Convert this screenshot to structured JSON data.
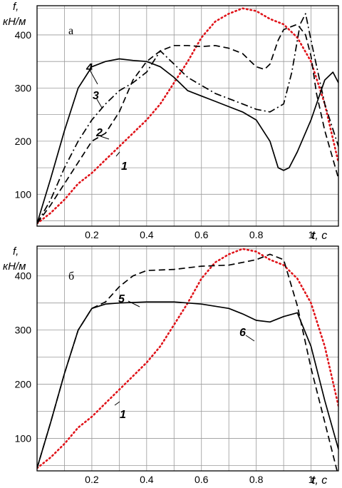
{
  "chart_data": [
    {
      "type": "line",
      "panel_label": "а",
      "ylabel": "f,",
      "yunit": "кН/м",
      "xlabel_var": "t",
      "xlabel_unit": ", с",
      "xlim": [
        0,
        1.1
      ],
      "ylim": [
        40,
        455
      ],
      "x_ticks": [
        0.2,
        0.4,
        0.6,
        0.8,
        1
      ],
      "x_tick_labels": [
        "0.2",
        "0.4",
        "0.6",
        "0.8",
        "1"
      ],
      "y_ticks": [
        100,
        200,
        300,
        400
      ],
      "y_tick_labels": [
        "100",
        "200",
        "300",
        "400"
      ],
      "grid": true,
      "series": [
        {
          "name": "1",
          "color": "#e0141a",
          "dash": "dotted",
          "x": [
            0,
            0.05,
            0.1,
            0.15,
            0.2,
            0.25,
            0.3,
            0.35,
            0.4,
            0.45,
            0.5,
            0.55,
            0.6,
            0.65,
            0.7,
            0.75,
            0.8,
            0.85,
            0.9,
            0.95,
            1.0,
            1.05,
            1.1
          ],
          "y": [
            45,
            65,
            90,
            120,
            140,
            165,
            190,
            215,
            240,
            270,
            310,
            350,
            395,
            425,
            440,
            450,
            445,
            430,
            420,
            395,
            350,
            270,
            160
          ]
        },
        {
          "name": "2",
          "color": "#000000",
          "dash": "dashed",
          "x": [
            0,
            0.05,
            0.1,
            0.15,
            0.2,
            0.25,
            0.3,
            0.35,
            0.4,
            0.45,
            0.5,
            0.55,
            0.6,
            0.65,
            0.7,
            0.75,
            0.8,
            0.83,
            0.85,
            0.88,
            0.9,
            0.95,
            0.98,
            1.0,
            1.02,
            1.05,
            1.1
          ],
          "y": [
            45,
            80,
            120,
            160,
            200,
            215,
            255,
            315,
            350,
            370,
            380,
            380,
            378,
            380,
            375,
            365,
            340,
            335,
            345,
            390,
            410,
            420,
            400,
            360,
            290,
            220,
            130
          ]
        },
        {
          "name": "3",
          "color": "#000000",
          "dash": "dashdot",
          "x": [
            0,
            0.05,
            0.1,
            0.15,
            0.2,
            0.25,
            0.3,
            0.35,
            0.4,
            0.45,
            0.5,
            0.55,
            0.6,
            0.65,
            0.7,
            0.75,
            0.8,
            0.85,
            0.9,
            0.93,
            0.96,
            0.98,
            1.0,
            1.05,
            1.1
          ],
          "y": [
            45,
            90,
            150,
            200,
            240,
            270,
            295,
            310,
            330,
            370,
            345,
            320,
            305,
            290,
            280,
            270,
            260,
            255,
            270,
            330,
            420,
            440,
            390,
            270,
            190
          ]
        },
        {
          "name": "4",
          "color": "#000000",
          "dash": "solid",
          "x": [
            0,
            0.05,
            0.1,
            0.15,
            0.2,
            0.25,
            0.3,
            0.35,
            0.4,
            0.45,
            0.5,
            0.55,
            0.6,
            0.65,
            0.7,
            0.75,
            0.8,
            0.85,
            0.88,
            0.9,
            0.92,
            0.95,
            1.0,
            1.05,
            1.08,
            1.1
          ],
          "y": [
            45,
            130,
            220,
            300,
            340,
            350,
            355,
            352,
            350,
            340,
            320,
            295,
            285,
            275,
            265,
            255,
            240,
            200,
            150,
            145,
            150,
            180,
            240,
            315,
            330,
            310
          ]
        }
      ],
      "annotations": [
        "1",
        "2",
        "3",
        "4"
      ]
    },
    {
      "type": "line",
      "panel_label": "б",
      "ylabel": "f,",
      "yunit": "кН/м",
      "xlabel_var": "t",
      "xlabel_unit": ", с",
      "xlim": [
        0,
        1.1
      ],
      "ylim": [
        40,
        455
      ],
      "x_ticks": [
        0.2,
        0.4,
        0.6,
        0.8,
        1
      ],
      "x_tick_labels": [
        "0.2",
        "0.4",
        "0.6",
        "0.8",
        "1"
      ],
      "y_ticks": [
        100,
        200,
        300,
        400
      ],
      "y_tick_labels": [
        "100",
        "200",
        "300",
        "400"
      ],
      "grid": true,
      "series": [
        {
          "name": "1",
          "color": "#e0141a",
          "dash": "dotted",
          "x": [
            0,
            0.05,
            0.1,
            0.15,
            0.2,
            0.25,
            0.3,
            0.35,
            0.4,
            0.45,
            0.5,
            0.55,
            0.6,
            0.65,
            0.7,
            0.75,
            0.8,
            0.85,
            0.9,
            0.95,
            1.0,
            1.05,
            1.1
          ],
          "y": [
            45,
            65,
            90,
            120,
            140,
            165,
            190,
            215,
            240,
            270,
            310,
            350,
            395,
            425,
            440,
            450,
            445,
            430,
            420,
            395,
            350,
            270,
            160
          ]
        },
        {
          "name": "5",
          "color": "#000000",
          "dash": "dashed",
          "x": [
            0,
            0.05,
            0.1,
            0.15,
            0.2,
            0.25,
            0.3,
            0.35,
            0.4,
            0.5,
            0.6,
            0.7,
            0.8,
            0.85,
            0.9,
            0.95,
            1.0,
            1.05,
            1.1
          ],
          "y": [
            45,
            130,
            220,
            300,
            340,
            352,
            380,
            400,
            410,
            412,
            418,
            420,
            430,
            440,
            430,
            345,
            230,
            130,
            30
          ]
        },
        {
          "name": "6",
          "color": "#000000",
          "dash": "solid",
          "x": [
            0,
            0.05,
            0.1,
            0.15,
            0.2,
            0.25,
            0.3,
            0.4,
            0.5,
            0.6,
            0.7,
            0.75,
            0.8,
            0.85,
            0.9,
            0.95,
            1.0,
            1.05,
            1.1
          ],
          "y": [
            45,
            130,
            220,
            300,
            340,
            348,
            350,
            352,
            352,
            348,
            340,
            330,
            318,
            315,
            325,
            332,
            270,
            170,
            80
          ]
        }
      ],
      "annotations": [
        "1",
        "5",
        "6"
      ]
    }
  ]
}
